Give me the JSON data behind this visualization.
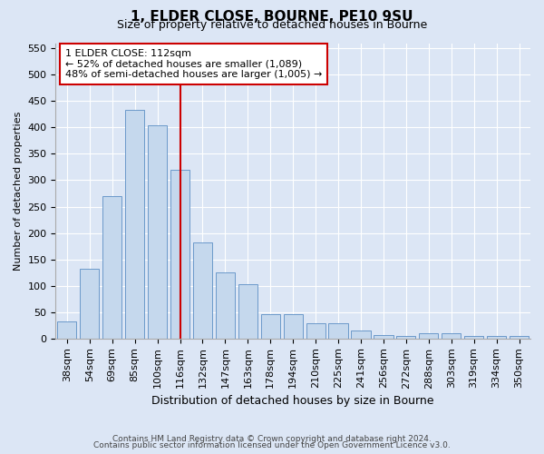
{
  "title": "1, ELDER CLOSE, BOURNE, PE10 9SU",
  "subtitle": "Size of property relative to detached houses in Bourne",
  "xlabel": "Distribution of detached houses by size in Bourne",
  "ylabel": "Number of detached properties",
  "categories": [
    "38sqm",
    "54sqm",
    "69sqm",
    "85sqm",
    "100sqm",
    "116sqm",
    "132sqm",
    "147sqm",
    "163sqm",
    "178sqm",
    "194sqm",
    "210sqm",
    "225sqm",
    "241sqm",
    "256sqm",
    "272sqm",
    "288sqm",
    "303sqm",
    "319sqm",
    "334sqm",
    "350sqm"
  ],
  "values": [
    33,
    132,
    270,
    433,
    405,
    320,
    182,
    125,
    103,
    46,
    46,
    29,
    28,
    15,
    6,
    4,
    9,
    9,
    4,
    4,
    4
  ],
  "bar_color": "#c5d8ed",
  "bar_edge_color": "#5b8ec4",
  "vline_x": 5.0,
  "vline_color": "#cc0000",
  "annotation_box_text": "1 ELDER CLOSE: 112sqm\n← 52% of detached houses are smaller (1,089)\n48% of semi-detached houses are larger (1,005) →",
  "ylim": [
    0,
    560
  ],
  "yticks": [
    0,
    50,
    100,
    150,
    200,
    250,
    300,
    350,
    400,
    450,
    500,
    550
  ],
  "footer_line1": "Contains HM Land Registry data © Crown copyright and database right 2024.",
  "footer_line2": "Contains public sector information licensed under the Open Government Licence v3.0.",
  "background_color": "#dce6f5",
  "plot_bg_color": "#dce6f5",
  "title_fontsize": 11,
  "subtitle_fontsize": 9,
  "xlabel_fontsize": 9,
  "ylabel_fontsize": 8,
  "tick_fontsize": 8,
  "annotation_fontsize": 8,
  "footer_fontsize": 6.5
}
